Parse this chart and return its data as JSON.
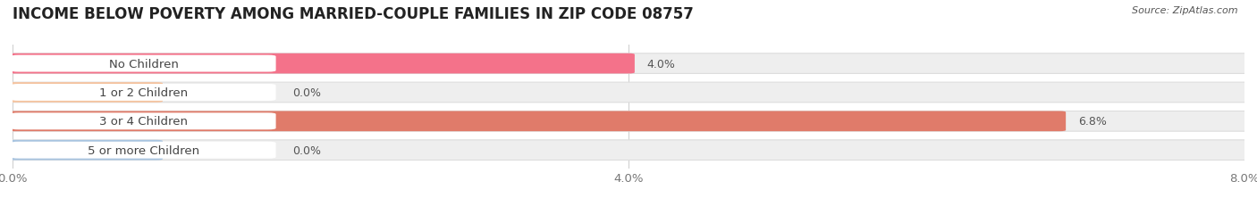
{
  "title": "INCOME BELOW POVERTY AMONG MARRIED-COUPLE FAMILIES IN ZIP CODE 08757",
  "source": "Source: ZipAtlas.com",
  "categories": [
    "No Children",
    "1 or 2 Children",
    "3 or 4 Children",
    "5 or more Children"
  ],
  "values": [
    4.0,
    0.0,
    6.8,
    0.0
  ],
  "bar_colors": [
    "#f4728a",
    "#f5c4a0",
    "#e07b6a",
    "#a8c4e0"
  ],
  "dot_colors": [
    "#e8556a",
    "#e8a070",
    "#c95040",
    "#7aaad0"
  ],
  "xlim": [
    0,
    8.0
  ],
  "xticks": [
    0.0,
    4.0,
    8.0
  ],
  "xticklabels": [
    "0.0%",
    "4.0%",
    "8.0%"
  ],
  "background_color": "#ffffff",
  "bar_bg_color": "#eeeeee",
  "bar_bg_edge_color": "#dddddd",
  "title_fontsize": 12,
  "tick_fontsize": 9.5,
  "label_fontsize": 9.5,
  "value_fontsize": 9
}
